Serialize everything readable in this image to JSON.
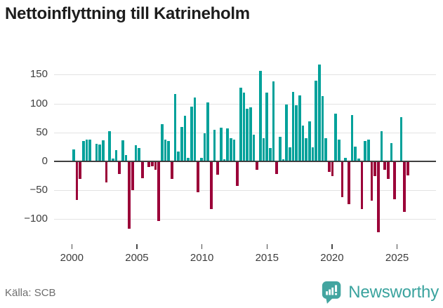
{
  "title": "Nettoinflyttning till Katrineholm",
  "footer": {
    "source": "Källa: SCB",
    "logo_text": "Newsworthy"
  },
  "colors": {
    "positive": "#00a19a",
    "negative": "#9b0038",
    "logo": "#43a5a0"
  },
  "chart_data": {
    "type": "bar",
    "title": "Nettoinflyttning till Katrineholm",
    "x_unit": "quarter",
    "start": "2000Q1",
    "end": "2025Q3",
    "values": [
      21,
      -67,
      -30,
      35,
      38,
      38,
      0,
      30,
      29,
      37,
      -36,
      52,
      5,
      19,
      -22,
      37,
      11,
      -117,
      -50,
      28,
      23,
      -29,
      0,
      -10,
      -8,
      -14,
      -103,
      64,
      38,
      35,
      -30,
      117,
      17,
      60,
      79,
      6,
      95,
      110,
      -54,
      6,
      48,
      102,
      -83,
      55,
      -23,
      58,
      4,
      57,
      40,
      38,
      -42,
      128,
      119,
      91,
      93,
      46,
      -14,
      157,
      40,
      119,
      23,
      138,
      -22,
      42,
      4,
      98,
      24,
      120,
      97,
      114,
      62,
      40,
      69,
      24,
      140,
      168,
      113,
      40,
      -18,
      -25,
      83,
      38,
      -62,
      6,
      -74,
      80,
      26,
      5,
      -82,
      35,
      38,
      -68,
      -26,
      -123,
      52,
      -14,
      -30,
      32,
      -65,
      0,
      77,
      -87,
      -24
    ],
    "x_ticks": [
      "2000",
      "2005",
      "2010",
      "2015",
      "2020",
      "2025"
    ],
    "y_ticks": [
      {
        "value": 150,
        "label": "150"
      },
      {
        "value": 100,
        "label": "100"
      },
      {
        "value": 50,
        "label": "50"
      },
      {
        "value": 0,
        "label": "0"
      },
      {
        "value": -50,
        "label": "−50"
      },
      {
        "value": -100,
        "label": "−100"
      }
    ],
    "ylim": [
      -140,
      176
    ],
    "grid": true,
    "legend": false
  }
}
